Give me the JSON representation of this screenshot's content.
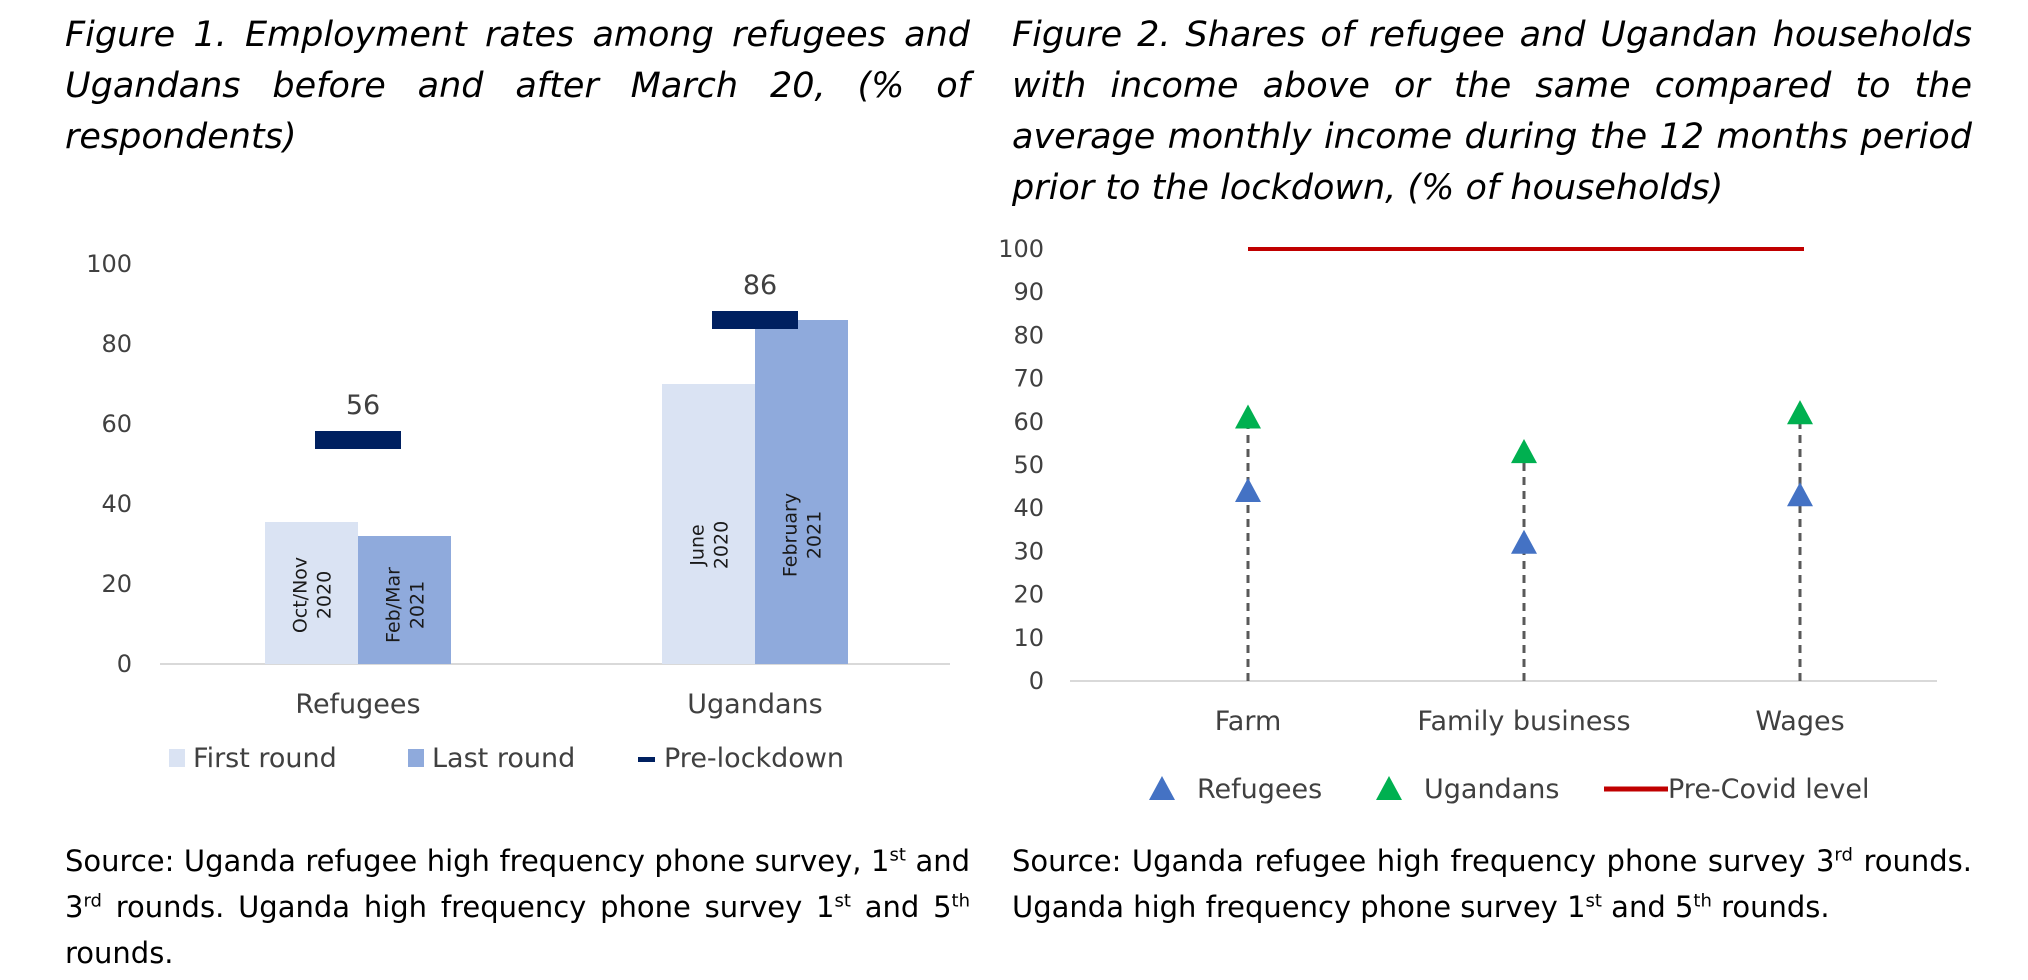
{
  "chart_data": [
    {
      "type": "bar",
      "title": "Figure 1. Employment rates among refugees and Ugandans before and after March 20, (% of respondents)",
      "categories": [
        "Refugees",
        "Ugandans"
      ],
      "ylim": [
        0,
        100
      ],
      "yticks": [
        0,
        20,
        40,
        60,
        80,
        100
      ],
      "series": [
        {
          "name": "First round",
          "values": [
            35.5,
            70
          ],
          "bar_labels": [
            "Oct/Nov 2020",
            "June 2020"
          ],
          "color": "#dae3f3"
        },
        {
          "name": "Last round",
          "values": [
            32,
            86
          ],
          "bar_labels": [
            "Feb/Mar 2021",
            "February 2021"
          ],
          "color": "#8faadc"
        },
        {
          "name": "Pre-lockdown",
          "values": [
            56,
            86
          ],
          "data_labels": [
            "56",
            "86"
          ],
          "color": "#002060",
          "style": "marker-dash"
        }
      ],
      "legend": "bottom",
      "grid": false,
      "source": {
        "parts": [
          "Source: Uganda refugee high frequency phone survey, 1",
          "st",
          " and 3",
          "rd",
          " rounds. Uganda high frequency phone survey 1",
          "st",
          " and 5",
          "th",
          " rounds."
        ]
      }
    },
    {
      "type": "scatter",
      "title": "Figure 2. Shares of refugee and Ugandan households with income above or the same compared to the average monthly income during the 12 months period prior to the lockdown, (% of households)",
      "categories": [
        "Farm",
        "Family business",
        "Wages"
      ],
      "ylim": [
        0,
        100
      ],
      "yticks": [
        0,
        10,
        20,
        30,
        40,
        50,
        60,
        70,
        80,
        90,
        100
      ],
      "series": [
        {
          "name": "Refugees",
          "values": [
            44,
            32,
            43
          ],
          "marker": "triangle",
          "color": "#4472c4"
        },
        {
          "name": "Ugandans",
          "values": [
            61,
            53,
            62
          ],
          "marker": "triangle",
          "color": "#00b050"
        },
        {
          "name": "Pre-Covid level",
          "values": [
            100,
            100,
            100
          ],
          "style": "line",
          "color": "#c00000"
        }
      ],
      "legend": "bottom",
      "grid": false,
      "source": {
        "parts": [
          "Source: Uganda refugee high frequency phone survey 3",
          "rd",
          " rounds. Uganda high frequency phone survey 1",
          "st",
          " and 5",
          "th",
          " rounds."
        ]
      }
    }
  ]
}
